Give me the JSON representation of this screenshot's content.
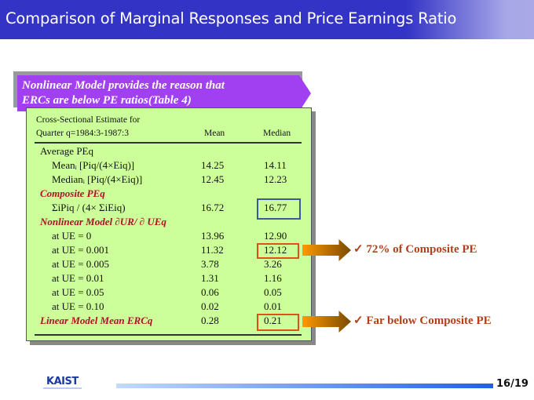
{
  "title": "Comparison of Marginal Responses and Price Earnings Ratio",
  "banner": {
    "line1": "Nonlinear Model provides the reason that",
    "line2": "ERCs are below PE ratios(Table 4)"
  },
  "table": {
    "header": {
      "line1": "Cross-Sectional Estimate for",
      "line2": "Quarter q=1984:3-1987:3",
      "mean": "Mean",
      "median": "Median"
    },
    "rows": [
      {
        "label": "Average PEq",
        "mean": "",
        "median": "",
        "style": "plain",
        "indent": false
      },
      {
        "label": "Meanᵢ [Piq/(4×Eiq)]",
        "mean": "14.25",
        "median": "14.11",
        "style": "plain",
        "indent": true
      },
      {
        "label": "Medianᵢ [Piq/(4×Eiq)]",
        "mean": "12.45",
        "median": "12.23",
        "style": "plain",
        "indent": true
      },
      {
        "label": "Composite PEq",
        "mean": "",
        "median": "",
        "style": "red",
        "indent": false
      },
      {
        "label": "ΣiPiq / (4× ΣiEiq)",
        "mean": "16.72",
        "median": "16.77",
        "style": "plain",
        "indent": true
      },
      {
        "label": "Nonlinear Model ∂UR/ ∂ UEq",
        "mean": "",
        "median": "",
        "style": "red",
        "indent": false
      },
      {
        "label": "at UE = 0",
        "mean": "13.96",
        "median": "12.90",
        "style": "plain",
        "indent": true
      },
      {
        "label": "at UE = 0.001",
        "mean": "11.32",
        "median": "12.12",
        "style": "plain",
        "indent": true
      },
      {
        "label": "at UE = 0.005",
        "mean": "3.78",
        "median": "3.26",
        "style": "plain",
        "indent": true
      },
      {
        "label": "at UE = 0.01",
        "mean": "1.31",
        "median": "1.16",
        "style": "plain",
        "indent": true
      },
      {
        "label": "at UE = 0.05",
        "mean": "0.06",
        "median": "0.05",
        "style": "plain",
        "indent": true
      },
      {
        "label": "at UE = 0.10",
        "mean": "0.02",
        "median": "0.01",
        "style": "plain",
        "indent": true
      },
      {
        "label": "Linear Model Mean ERCq",
        "mean": "0.28",
        "median": "0.21",
        "style": "red",
        "indent": false
      }
    ]
  },
  "notes": [
    "✓ 72% of Composite PE",
    "✓ Far below Composite PE"
  ],
  "footer": {
    "logo": "KAIST",
    "page": "16/19"
  },
  "colors": {
    "title_bg": "#3333c6",
    "banner": "#a040f0",
    "table_bg": "#ccff99",
    "highlight_blue": "#3a5a9a",
    "highlight_orange": "#e0501a"
  }
}
